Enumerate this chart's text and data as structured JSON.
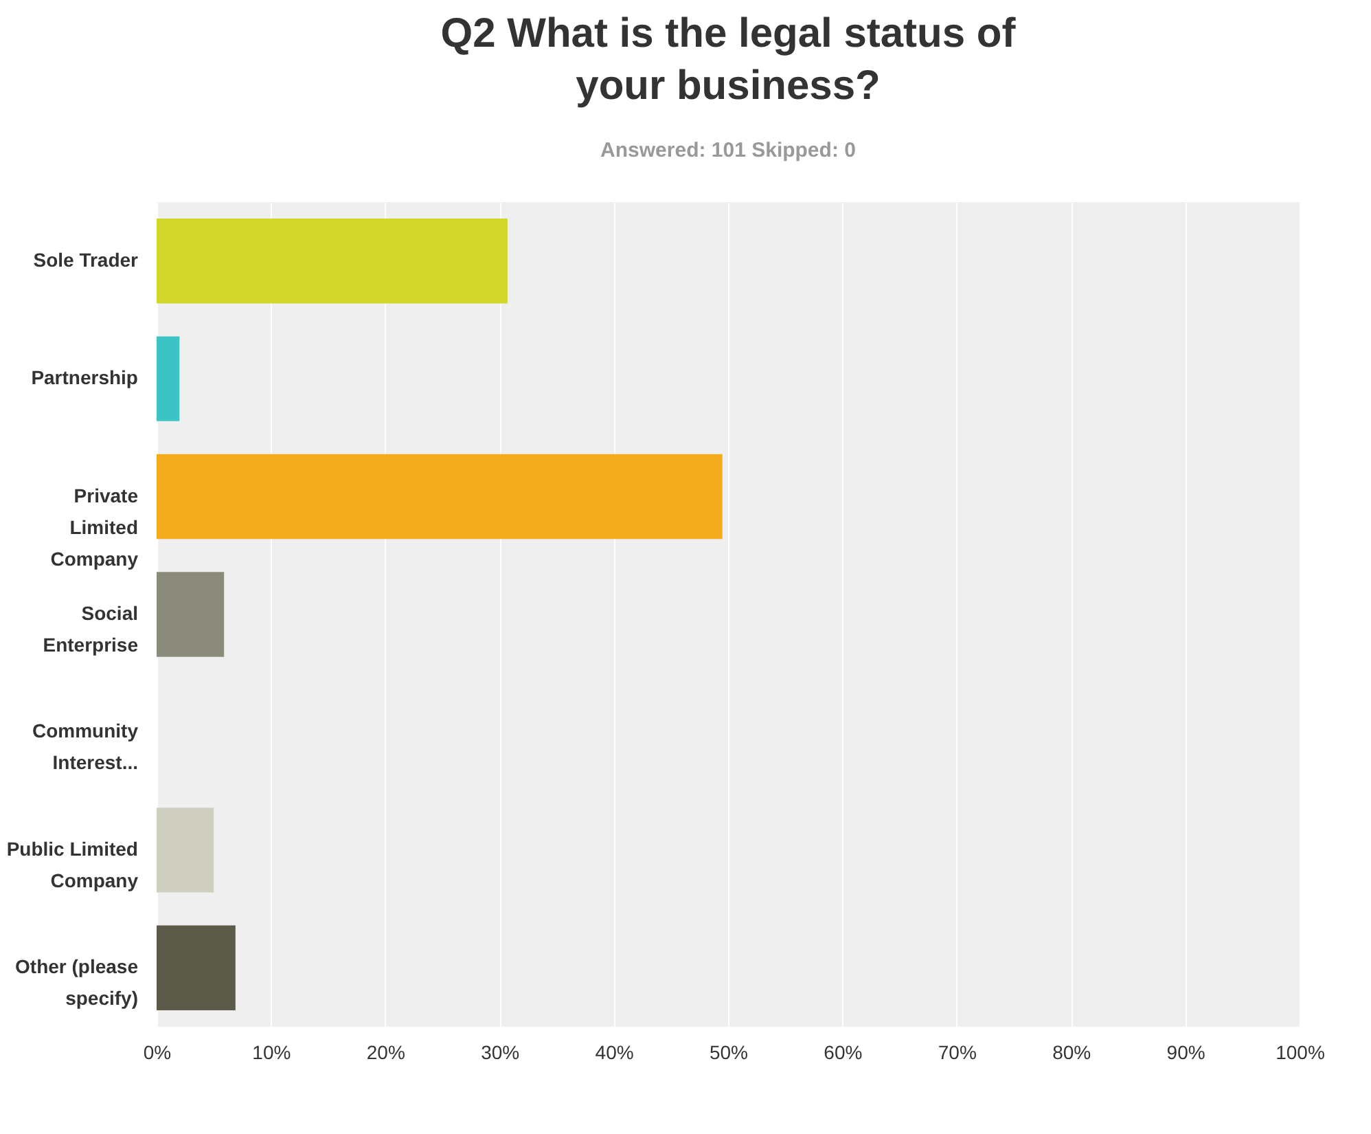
{
  "chart_data": {
    "type": "bar",
    "orientation": "horizontal",
    "title": "Q2 What is the legal status of your business?",
    "subtitle": "Answered: 101    Skipped: 0",
    "categories": [
      "Sole Trader",
      "Partnership",
      "Private Limited Company",
      "Social Enterprise",
      "Community Interest...",
      "Public Limited Company",
      "Other (please specify)"
    ],
    "values": [
      30.7,
      2,
      49.5,
      5.9,
      0,
      5,
      6.9
    ],
    "colors": [
      "#d0d62a",
      "#3cc4c4",
      "#f5ab1e",
      "#8a8b7a",
      "#8a8b7a",
      "#cfcfc0",
      "#5c5b4a"
    ],
    "xlim": [
      0,
      100
    ],
    "xticks": [
      {
        "value": 0,
        "label": "0%"
      },
      {
        "value": 10,
        "label": "10%"
      },
      {
        "value": 20,
        "label": "20%"
      },
      {
        "value": 30,
        "label": "30%"
      },
      {
        "value": 40,
        "label": "40%"
      },
      {
        "value": 50,
        "label": "50%"
      },
      {
        "value": 60,
        "label": "60%"
      },
      {
        "value": 70,
        "label": "70%"
      },
      {
        "value": 80,
        "label": "80%"
      },
      {
        "value": 90,
        "label": "90%"
      },
      {
        "value": 100,
        "label": "100%"
      }
    ],
    "grid": "x"
  }
}
